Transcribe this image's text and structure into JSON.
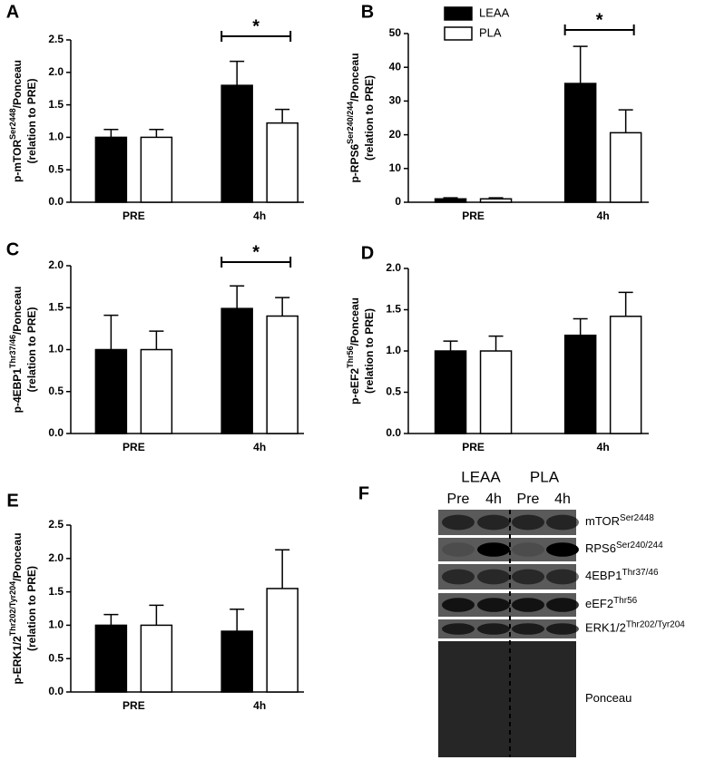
{
  "chart_data": [
    {
      "type": "bar",
      "panel_label": "A",
      "y_label": [
        "p-mTOR",
        "Ser2448",
        "/Ponceau"
      ],
      "y_label_line2": "(relation to PRE)",
      "categories": [
        "PRE",
        "4h"
      ],
      "series": [
        {
          "color": "#000000",
          "values": [
            1.0,
            1.8
          ],
          "errors": [
            0.12,
            0.37
          ]
        },
        {
          "color": "#ffffff",
          "values": [
            1.0,
            1.22
          ],
          "errors": [
            0.12,
            0.21
          ]
        }
      ],
      "ylim": [
        0,
        2.5
      ],
      "yticks": [
        {
          "value": 0,
          "label": "0.0"
        },
        0.5,
        {
          "value": 1,
          "label": "1.0"
        },
        1.5,
        {
          "value": 2,
          "label": "2.0"
        },
        2.5
      ],
      "annotation": "*"
    },
    {
      "type": "bar",
      "panel_label": "B",
      "y_label": [
        "p-RPS6",
        "Ser240/244",
        "/Ponceau"
      ],
      "y_label_line2": "(relation to PRE)",
      "categories": [
        "PRE",
        "4h"
      ],
      "series": [
        {
          "name": "LEAA",
          "color": "#000000",
          "values": [
            1.0,
            35.2
          ],
          "errors": [
            0.3,
            11
          ]
        },
        {
          "name": "PLA",
          "color": "#ffffff",
          "values": [
            1.0,
            20.6
          ],
          "errors": [
            0.3,
            6.8
          ]
        }
      ],
      "ylim": [
        0,
        50
      ],
      "yticks": [
        0,
        10,
        20,
        30,
        40,
        50
      ],
      "legend": "top-left",
      "annotation": "*"
    },
    {
      "type": "bar",
      "panel_label": "C",
      "y_label": [
        "p-4EBP1",
        "Thr37/46",
        "/Ponceau"
      ],
      "y_label_line2": "(relation to PRE)",
      "categories": [
        "PRE",
        "4h"
      ],
      "series": [
        {
          "color": "#000000",
          "values": [
            1.0,
            1.49
          ],
          "errors": [
            0.41,
            0.27
          ]
        },
        {
          "color": "#ffffff",
          "values": [
            1.0,
            1.4
          ],
          "errors": [
            0.22,
            0.22
          ]
        }
      ],
      "ylim": [
        0,
        2
      ],
      "yticks": [
        {
          "value": 0,
          "label": "0.0"
        },
        0.5,
        {
          "value": 1,
          "label": "1.0"
        },
        1.5,
        {
          "value": 2,
          "label": "2.0"
        }
      ],
      "annotation": "*"
    },
    {
      "type": "bar",
      "panel_label": "D",
      "y_label": [
        "p-eEF2",
        "Thr56",
        "/Ponceau"
      ],
      "y_label_line2": "(relation to PRE)",
      "categories": [
        "PRE",
        "4h"
      ],
      "series": [
        {
          "color": "#000000",
          "values": [
            1.0,
            1.19
          ],
          "errors": [
            0.12,
            0.2
          ]
        },
        {
          "color": "#ffffff",
          "values": [
            1.0,
            1.42
          ],
          "errors": [
            0.18,
            0.29
          ]
        }
      ],
      "ylim": [
        0,
        2
      ],
      "yticks": [
        {
          "value": 0,
          "label": "0.0"
        },
        0.5,
        {
          "value": 1,
          "label": "1.0"
        },
        1.5,
        {
          "value": 2,
          "label": "2.0"
        }
      ]
    },
    {
      "type": "bar",
      "panel_label": "E",
      "y_label": [
        "p-ERK1/2",
        "Thr202/Tyr204",
        "/Ponceau"
      ],
      "y_label_line2": "(relation to PRE)",
      "categories": [
        "PRE",
        "4h"
      ],
      "series": [
        {
          "color": "#000000",
          "values": [
            1.0,
            0.91
          ],
          "errors": [
            0.16,
            0.33
          ]
        },
        {
          "color": "#ffffff",
          "values": [
            1.0,
            1.55
          ],
          "errors": [
            0.3,
            0.58
          ]
        }
      ],
      "ylim": [
        0,
        2.5
      ],
      "yticks": [
        {
          "value": 0,
          "label": "0.0"
        },
        0.5,
        {
          "value": 1,
          "label": "1.0"
        },
        1.5,
        {
          "value": 2,
          "label": "2.0"
        },
        2.5
      ]
    }
  ],
  "blot": {
    "panel_label": "F",
    "groups": [
      "LEAA",
      "PLA"
    ],
    "lanes": [
      "Pre",
      "4h",
      "Pre",
      "4h"
    ],
    "rows": [
      {
        "name": "mTOR",
        "sup": "Ser2448"
      },
      {
        "name": "RPS6",
        "sup": "Ser240/244"
      },
      {
        "name": "4EBP1",
        "sup": "Thr37/46"
      },
      {
        "name": "eEF2",
        "sup": "Thr56"
      },
      {
        "name": "ERK1/2",
        "sup": "Thr202/Tyr204"
      },
      {
        "name": "Ponceau"
      }
    ]
  }
}
